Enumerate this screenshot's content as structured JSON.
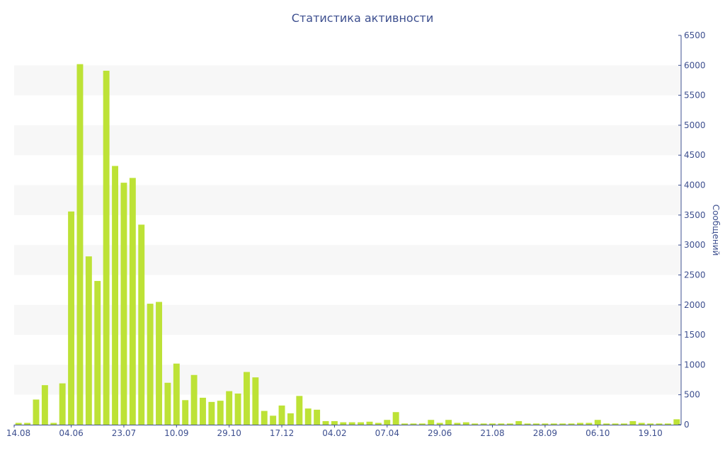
{
  "chart_data": {
    "type": "bar",
    "title": "Статистика активности",
    "ylabel": "Сообщений",
    "xlabel": "",
    "ylim": [
      0,
      6500
    ],
    "y_ticks": [
      0,
      500,
      1000,
      1500,
      2000,
      2500,
      3000,
      3500,
      4000,
      4500,
      5000,
      5500,
      6000,
      6500
    ],
    "y_axis_side": "right",
    "grid": "alternating-bands",
    "x_tick_labels": [
      {
        "index": 0,
        "label": "14.08"
      },
      {
        "index": 6,
        "label": "04.06"
      },
      {
        "index": 12,
        "label": "23.07"
      },
      {
        "index": 18,
        "label": "10.09"
      },
      {
        "index": 24,
        "label": "29.10"
      },
      {
        "index": 30,
        "label": "17.12"
      },
      {
        "index": 36,
        "label": "04.02"
      },
      {
        "index": 42,
        "label": "07.04"
      },
      {
        "index": 48,
        "label": "29.06"
      },
      {
        "index": 54,
        "label": "21.08"
      },
      {
        "index": 60,
        "label": "28.09"
      },
      {
        "index": 66,
        "label": "06.10"
      },
      {
        "index": 72,
        "label": "19.10"
      }
    ],
    "values": [
      30,
      30,
      420,
      660,
      30,
      690,
      3560,
      6020,
      2810,
      2400,
      5910,
      4320,
      4040,
      4120,
      3340,
      2020,
      2050,
      700,
      1020,
      410,
      830,
      450,
      380,
      400,
      560,
      520,
      880,
      790,
      230,
      150,
      320,
      190,
      480,
      270,
      250,
      60,
      60,
      40,
      40,
      40,
      50,
      30,
      80,
      210,
      20,
      20,
      20,
      80,
      30,
      80,
      30,
      40,
      20,
      20,
      20,
      20,
      20,
      60,
      20,
      20,
      20,
      20,
      20,
      20,
      30,
      30,
      80,
      20,
      20,
      20,
      60,
      30,
      20,
      20,
      20,
      90
    ],
    "colors": {
      "bar": "#bde236",
      "band": "#f7f7f7",
      "text": "#3d4f8f",
      "axis": "#3d4f8f"
    }
  }
}
